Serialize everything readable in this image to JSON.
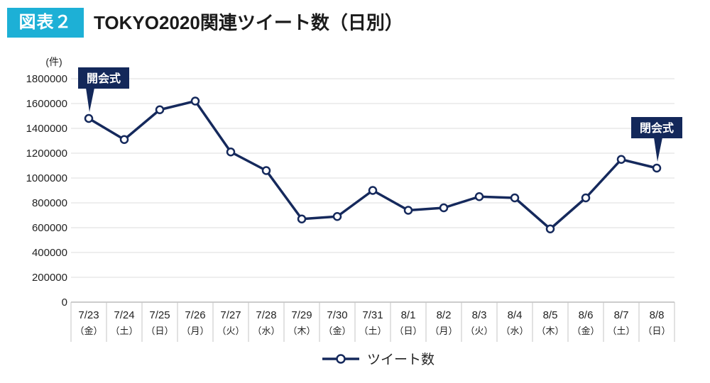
{
  "figure_label": "図表２",
  "colors": {
    "label_bg": "#1db0d6",
    "line": "#15295c",
    "callout_bg": "#13285a",
    "grid": "#dedede"
  },
  "chart_data": {
    "type": "line",
    "title": "TOKYO2020関連ツイート数（日別）",
    "ylabel": "(件)",
    "xlabel": "",
    "categories": [
      "7/23",
      "7/24",
      "7/25",
      "7/26",
      "7/27",
      "7/28",
      "7/29",
      "7/30",
      "7/31",
      "8/1",
      "8/2",
      "8/3",
      "8/4",
      "8/5",
      "8/6",
      "8/7",
      "8/8"
    ],
    "category_sublabels": [
      "（金）",
      "（土）",
      "（日）",
      "（月）",
      "（火）",
      "（水）",
      "（木）",
      "（金）",
      "（土）",
      "（日）",
      "（月）",
      "（火）",
      "（水）",
      "（木）",
      "（金）",
      "（土）",
      "（日）"
    ],
    "series": [
      {
        "name": "ツイート数",
        "values": [
          1480000,
          1310000,
          1550000,
          1620000,
          1210000,
          1060000,
          670000,
          690000,
          900000,
          740000,
          760000,
          850000,
          840000,
          590000,
          840000,
          1150000,
          1080000
        ]
      }
    ],
    "ylim": [
      0,
      1800000
    ],
    "yticks": [
      0,
      200000,
      400000,
      600000,
      800000,
      1000000,
      1200000,
      1400000,
      1600000,
      1800000
    ],
    "grid": true,
    "legend": "bottom-center",
    "annotations": [
      {
        "category": "7/23",
        "text": "開会式"
      },
      {
        "category": "8/8",
        "text": "閉会式"
      }
    ]
  }
}
